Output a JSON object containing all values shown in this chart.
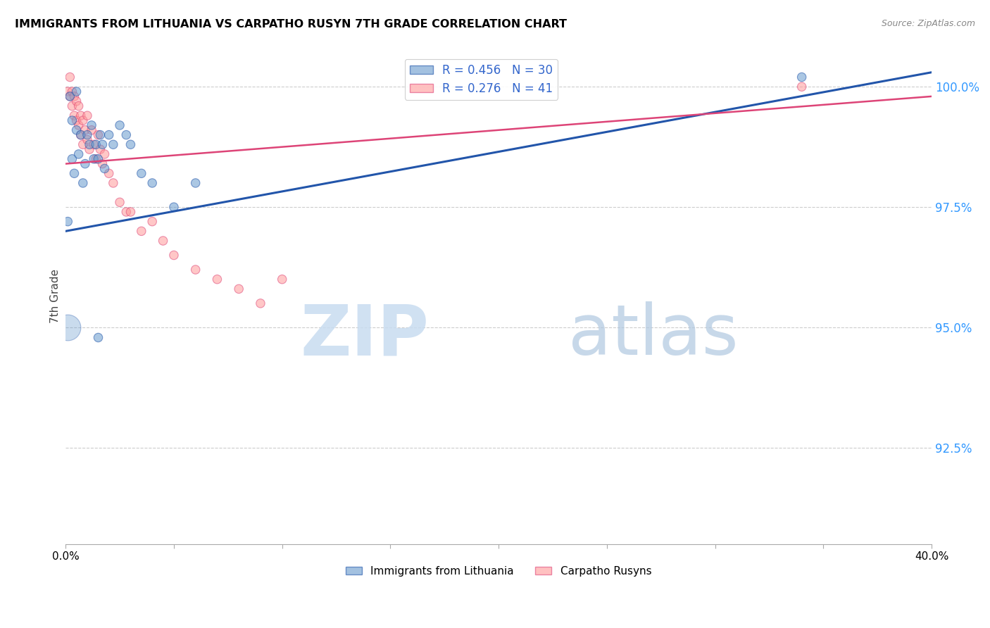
{
  "title": "IMMIGRANTS FROM LITHUANIA VS CARPATHO RUSYN 7TH GRADE CORRELATION CHART",
  "source": "Source: ZipAtlas.com",
  "ylabel": "7th Grade",
  "yaxis_ticks": [
    "100.0%",
    "97.5%",
    "95.0%",
    "92.5%"
  ],
  "yaxis_tick_vals": [
    1.0,
    0.975,
    0.95,
    0.925
  ],
  "xlim": [
    0.0,
    0.4
  ],
  "ylim": [
    0.905,
    1.008
  ],
  "legend_blue_label": "R = 0.456   N = 30",
  "legend_pink_label": "R = 0.276   N = 41",
  "legend_bottom_blue": "Immigrants from Lithuania",
  "legend_bottom_pink": "Carpatho Rusyns",
  "blue_color": "#6699CC",
  "pink_color": "#FF9999",
  "blue_line_color": "#2255AA",
  "pink_line_color": "#DD4477",
  "blue_scatter_x": [
    0.001,
    0.002,
    0.003,
    0.003,
    0.004,
    0.005,
    0.005,
    0.006,
    0.007,
    0.008,
    0.009,
    0.01,
    0.011,
    0.012,
    0.013,
    0.014,
    0.015,
    0.016,
    0.017,
    0.018,
    0.02,
    0.022,
    0.025,
    0.028,
    0.03,
    0.035,
    0.04,
    0.05,
    0.06,
    0.34
  ],
  "blue_scatter_y": [
    0.972,
    0.998,
    0.993,
    0.985,
    0.982,
    0.999,
    0.991,
    0.986,
    0.99,
    0.98,
    0.984,
    0.99,
    0.988,
    0.992,
    0.985,
    0.988,
    0.985,
    0.99,
    0.988,
    0.983,
    0.99,
    0.988,
    0.992,
    0.99,
    0.988,
    0.982,
    0.98,
    0.975,
    0.98,
    1.002
  ],
  "blue_scatter_size": [
    80,
    80,
    80,
    80,
    80,
    80,
    80,
    80,
    80,
    80,
    80,
    80,
    80,
    80,
    80,
    80,
    80,
    80,
    80,
    80,
    80,
    80,
    80,
    80,
    80,
    80,
    80,
    80,
    80,
    80
  ],
  "blue_large_x": [
    0.001
  ],
  "blue_large_y": [
    0.95
  ],
  "blue_large_size": [
    700
  ],
  "blue_small2_x": [
    0.015
  ],
  "blue_small2_y": [
    0.948
  ],
  "blue_small2_size": [
    80
  ],
  "pink_scatter_x": [
    0.001,
    0.002,
    0.002,
    0.003,
    0.003,
    0.004,
    0.004,
    0.005,
    0.005,
    0.006,
    0.006,
    0.007,
    0.007,
    0.008,
    0.008,
    0.009,
    0.01,
    0.01,
    0.011,
    0.012,
    0.013,
    0.014,
    0.015,
    0.016,
    0.017,
    0.018,
    0.02,
    0.022,
    0.025,
    0.028,
    0.03,
    0.035,
    0.04,
    0.045,
    0.05,
    0.06,
    0.07,
    0.08,
    0.09,
    0.1,
    0.34
  ],
  "pink_scatter_y": [
    0.999,
    1.002,
    0.998,
    0.999,
    0.996,
    0.998,
    0.994,
    0.997,
    0.993,
    0.996,
    0.992,
    0.994,
    0.99,
    0.993,
    0.988,
    0.991,
    0.994,
    0.989,
    0.987,
    0.991,
    0.988,
    0.985,
    0.99,
    0.987,
    0.984,
    0.986,
    0.982,
    0.98,
    0.976,
    0.974,
    0.974,
    0.97,
    0.972,
    0.968,
    0.965,
    0.962,
    0.96,
    0.958,
    0.955,
    0.96,
    1.0
  ],
  "pink_scatter_size": [
    80,
    80,
    80,
    80,
    80,
    80,
    80,
    80,
    80,
    80,
    80,
    80,
    80,
    80,
    80,
    80,
    80,
    80,
    80,
    80,
    80,
    80,
    80,
    80,
    80,
    80,
    80,
    80,
    80,
    80,
    80,
    80,
    80,
    80,
    80,
    80,
    80,
    80,
    80,
    80,
    80
  ],
  "blue_line_x": [
    0.0,
    0.4
  ],
  "blue_line_y": [
    0.97,
    1.003
  ],
  "pink_line_x": [
    0.0,
    0.4
  ],
  "pink_line_y": [
    0.984,
    0.998
  ]
}
